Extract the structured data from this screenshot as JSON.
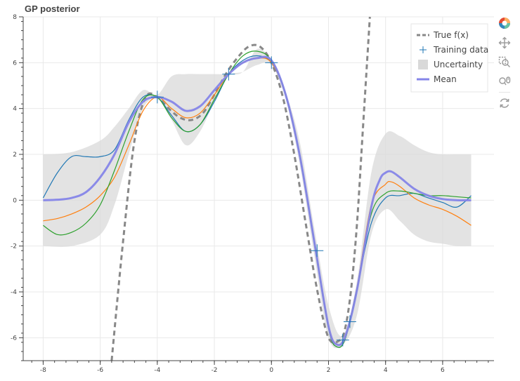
{
  "chart_data": {
    "type": "line",
    "title": "GP posterior",
    "xlabel": "",
    "ylabel": "",
    "xlim": [
      -8.7,
      7.8
    ],
    "ylim": [
      -7.0,
      8.0
    ],
    "grid": true,
    "legend_position": "top-right",
    "x_ticks": [
      -8,
      -6,
      -4,
      -2,
      0,
      2,
      4,
      6
    ],
    "y_ticks": [
      -6,
      -4,
      -2,
      0,
      2,
      4,
      6,
      8
    ],
    "true_function": {
      "name": "True f(x)",
      "color": "#888888",
      "style": "dashed",
      "x": [
        -5.6,
        -5.2,
        -4.8,
        -4.4,
        -4.0,
        -3.6,
        -3.2,
        -2.8,
        -2.4,
        -2.0,
        -1.6,
        -1.2,
        -0.8,
        -0.4,
        0.0,
        0.4,
        0.8,
        1.2,
        1.6,
        2.0,
        2.4,
        2.6,
        2.8,
        3.0,
        3.2,
        3.45
      ],
      "y": [
        -7.0,
        -1.8,
        2.6,
        4.5,
        4.5,
        4.0,
        3.6,
        3.5,
        3.8,
        4.6,
        5.5,
        6.2,
        6.7,
        6.7,
        6.0,
        4.5,
        2.0,
        -1.0,
        -3.9,
        -6.0,
        -6.1,
        -5.5,
        -3.8,
        -1.0,
        3.0,
        8.0
      ]
    },
    "training_data": {
      "name": "Training data",
      "color": "#1f77b4",
      "x": [
        -4.0,
        -1.5,
        0.0,
        1.6,
        2.5,
        2.75
      ],
      "y": [
        4.5,
        5.5,
        6.0,
        -2.2,
        -6.1,
        -5.3
      ]
    },
    "uncertainty": {
      "name": "Uncertainty",
      "color": "#d9d9d9",
      "x": [
        -8.0,
        -7.0,
        -6.0,
        -5.5,
        -5.0,
        -4.5,
        -4.0,
        -3.5,
        -3.0,
        -2.5,
        -2.0,
        -1.5,
        -1.0,
        -0.5,
        0.0,
        0.5,
        1.0,
        1.5,
        2.0,
        2.5,
        3.0,
        3.5,
        4.0,
        4.5,
        5.0,
        5.5,
        6.0,
        6.5,
        7.0
      ],
      "upper": [
        2.0,
        2.1,
        2.6,
        3.2,
        4.0,
        4.8,
        4.6,
        5.4,
        5.5,
        5.5,
        5.5,
        5.5,
        5.6,
        6.6,
        6.1,
        4.7,
        2.5,
        -1.2,
        -4.6,
        -5.9,
        -3.5,
        1.2,
        2.9,
        2.8,
        2.4,
        2.1,
        2.0,
        2.0,
        2.0
      ],
      "lower": [
        -2.0,
        -2.0,
        -1.5,
        -0.2,
        2.0,
        4.0,
        4.4,
        3.5,
        2.4,
        3.0,
        4.3,
        5.4,
        5.6,
        5.9,
        5.9,
        4.4,
        1.5,
        -2.4,
        -6.0,
        -6.3,
        -5.0,
        -1.5,
        -0.4,
        -0.9,
        -1.5,
        -1.8,
        -1.9,
        -2.0,
        -2.0
      ]
    },
    "mean": {
      "name": "Mean",
      "color": "#8585e8",
      "x": [
        -8.0,
        -7.5,
        -7.0,
        -6.5,
        -6.0,
        -5.5,
        -5.0,
        -4.5,
        -4.0,
        -3.5,
        -3.0,
        -2.5,
        -2.0,
        -1.5,
        -1.0,
        -0.5,
        0.0,
        0.5,
        1.0,
        1.5,
        2.0,
        2.3,
        2.6,
        3.0,
        3.5,
        3.8,
        4.0,
        4.2,
        4.5,
        5.0,
        5.5,
        6.0,
        6.5,
        7.0
      ],
      "y": [
        0.0,
        0.02,
        0.1,
        0.35,
        1.0,
        2.0,
        3.4,
        4.3,
        4.5,
        4.3,
        3.9,
        4.1,
        4.8,
        5.5,
        6.0,
        6.2,
        6.1,
        4.6,
        1.9,
        -1.8,
        -5.5,
        -6.3,
        -5.9,
        -3.9,
        -0.3,
        0.9,
        1.2,
        1.25,
        1.0,
        0.5,
        0.2,
        0.05,
        0.0,
        0.0
      ]
    },
    "samples": [
      {
        "color": "#1f77b4",
        "x": [
          -8.0,
          -7.5,
          -7.0,
          -6.5,
          -6.0,
          -5.5,
          -5.0,
          -4.5,
          -4.0,
          -3.5,
          -3.0,
          -2.5,
          -2.0,
          -1.5,
          -1.0,
          -0.5,
          0.0,
          0.5,
          1.0,
          1.5,
          2.0,
          2.3,
          2.6,
          3.0,
          3.5,
          4.0,
          4.5,
          5.0,
          5.5,
          6.0,
          6.5,
          7.0
        ],
        "y": [
          0.1,
          1.2,
          1.9,
          1.9,
          1.9,
          2.2,
          3.5,
          4.5,
          4.5,
          3.7,
          3.0,
          3.3,
          4.3,
          5.5,
          6.1,
          6.3,
          6.0,
          4.6,
          1.9,
          -1.8,
          -5.6,
          -6.4,
          -6.0,
          -3.8,
          -1.0,
          0.1,
          0.2,
          0.3,
          0.1,
          -0.1,
          -0.3,
          0.2
        ]
      },
      {
        "color": "#ff7f0e",
        "x": [
          -8.0,
          -7.5,
          -7.0,
          -6.5,
          -6.0,
          -5.5,
          -5.0,
          -4.5,
          -4.0,
          -3.5,
          -3.0,
          -2.5,
          -2.0,
          -1.5,
          -1.0,
          -0.5,
          0.0,
          0.5,
          1.0,
          1.5,
          2.0,
          2.3,
          2.6,
          3.0,
          3.5,
          4.0,
          4.2,
          4.5,
          5.0,
          5.5,
          6.0,
          6.5,
          7.0
        ],
        "y": [
          -0.9,
          -0.8,
          -0.6,
          -0.3,
          0.2,
          1.0,
          2.4,
          3.9,
          4.5,
          4.0,
          3.6,
          3.8,
          4.6,
          5.5,
          6.0,
          6.2,
          6.0,
          4.6,
          1.9,
          -1.8,
          -5.5,
          -6.3,
          -5.9,
          -3.8,
          -0.2,
          0.7,
          0.8,
          0.6,
          0.1,
          -0.2,
          -0.4,
          -0.7,
          -1.1
        ]
      },
      {
        "color": "#2ca02c",
        "x": [
          -8.0,
          -7.5,
          -7.0,
          -6.5,
          -6.0,
          -5.5,
          -5.0,
          -4.5,
          -4.0,
          -3.5,
          -3.0,
          -2.5,
          -2.0,
          -1.5,
          -1.0,
          -0.5,
          0.0,
          0.5,
          1.0,
          1.5,
          2.0,
          2.3,
          2.6,
          3.0,
          3.5,
          4.0,
          4.5,
          5.0,
          5.5,
          6.0,
          6.5,
          7.0
        ],
        "y": [
          -1.1,
          -1.5,
          -1.4,
          -1.0,
          -0.2,
          1.3,
          3.0,
          4.4,
          4.5,
          3.6,
          3.0,
          3.3,
          4.4,
          5.5,
          6.3,
          6.5,
          6.1,
          4.6,
          1.9,
          -1.8,
          -5.6,
          -6.4,
          -6.0,
          -3.9,
          -0.6,
          0.3,
          0.4,
          0.3,
          0.2,
          0.2,
          0.15,
          0.1
        ]
      }
    ]
  },
  "toolbar": {
    "logo_icon": "bokeh-logo-icon",
    "tools": [
      "pan-icon",
      "box-zoom-icon",
      "wheel-zoom-icon",
      "reset-icon"
    ]
  }
}
